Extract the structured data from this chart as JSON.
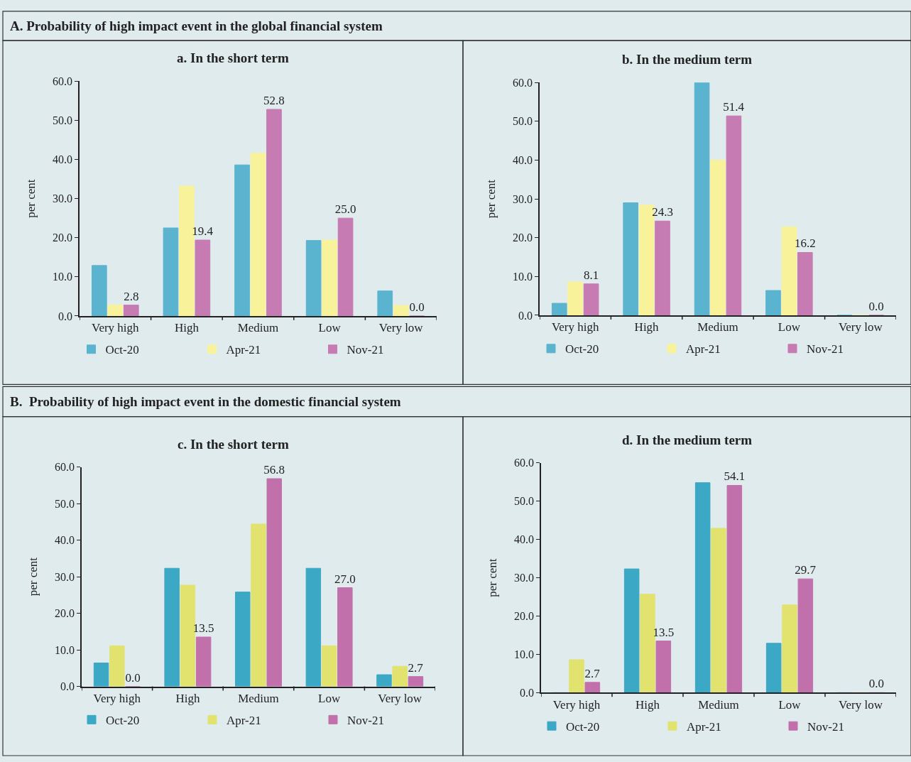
{
  "chart_data": [
    {
      "type": "bar",
      "title": "a. In the short term",
      "ylabel": "per cent",
      "annotations": [
        "A. Probability of high impact event in the global financial system"
      ],
      "categories": [
        "Very high",
        "High",
        "Medium",
        "Low",
        "Very low"
      ],
      "series": [
        {
          "name": "Oct-20",
          "color": "#5bb4cf",
          "values": [
            12.9,
            22.5,
            38.6,
            19.3,
            6.4
          ]
        },
        {
          "name": "Apr-21",
          "color": "#f8f39a",
          "values": [
            2.8,
            33.2,
            41.6,
            19.4,
            2.7
          ]
        },
        {
          "name": "Nov-21",
          "color": "#c67bb3",
          "values": [
            2.8,
            19.4,
            52.8,
            25.0,
            0.0
          ],
          "value_labels": [
            "2.8",
            "19.4",
            "52.8",
            "25.0",
            "0.0"
          ]
        }
      ],
      "ylim": [
        0,
        60
      ],
      "yticks": [
        {
          "value": 0,
          "label": "0.0"
        },
        {
          "value": 10,
          "label": "10.0"
        },
        {
          "value": 20,
          "label": "20.0"
        },
        {
          "value": 30,
          "label": "30.0"
        },
        {
          "value": 40,
          "label": "40.0"
        },
        {
          "value": 50,
          "label": "50.0"
        },
        {
          "value": 60,
          "label": "60.0"
        }
      ],
      "legend": "bottom",
      "grid": false
    },
    {
      "type": "bar",
      "title": "b. In the medium term",
      "ylabel": "per cent",
      "categories": [
        "Very high",
        "High",
        "Medium",
        "Low",
        "Very low"
      ],
      "series": [
        {
          "name": "Oct-20",
          "color": "#5bb4cf",
          "values": [
            3.1,
            29.0,
            60.0,
            6.4,
            0.0
          ]
        },
        {
          "name": "Apr-21",
          "color": "#f8f39a",
          "values": [
            8.6,
            28.4,
            40.0,
            22.8,
            0.0
          ]
        },
        {
          "name": "Nov-21",
          "color": "#c67bb3",
          "values": [
            8.1,
            24.3,
            51.4,
            16.2,
            0.0
          ],
          "value_labels": [
            "8.1",
            "24.3",
            "51.4",
            "16.2",
            "0.0"
          ]
        }
      ],
      "ylim": [
        0,
        60
      ],
      "yticks": [
        {
          "value": 0,
          "label": "0.0"
        },
        {
          "value": 10,
          "label": "10.0"
        },
        {
          "value": 20,
          "label": "20.0"
        },
        {
          "value": 30,
          "label": "30.0"
        },
        {
          "value": 40,
          "label": "40.0"
        },
        {
          "value": 50,
          "label": "50.0"
        },
        {
          "value": 60,
          "label": "60.0"
        }
      ],
      "legend": "bottom",
      "grid": false
    },
    {
      "type": "bar",
      "title": "c. In the short term",
      "ylabel": "per cent",
      "annotations": [
        "B.  Probability of high impact event in the domestic financial system"
      ],
      "categories": [
        "Very high",
        "High",
        "Medium",
        "Low",
        "Very low"
      ],
      "series": [
        {
          "name": "Oct-20",
          "color": "#3ba8c5",
          "values": [
            6.4,
            32.3,
            25.8,
            32.3,
            3.2
          ]
        },
        {
          "name": "Apr-21",
          "color": "#e1e36e",
          "values": [
            11.1,
            27.7,
            44.4,
            11.1,
            5.5
          ]
        },
        {
          "name": "Nov-21",
          "color": "#c270ab",
          "values": [
            0.0,
            13.5,
            56.8,
            27.0,
            2.7
          ],
          "value_labels": [
            "0.0",
            "13.5",
            "56.8",
            "27.0",
            "2.7"
          ]
        }
      ],
      "ylim": [
        0,
        60
      ],
      "yticks": [
        {
          "value": 0,
          "label": "0.0"
        },
        {
          "value": 10,
          "label": "10.0"
        },
        {
          "value": 20,
          "label": "20.0"
        },
        {
          "value": 30,
          "label": "30.0"
        },
        {
          "value": 40,
          "label": "40.0"
        },
        {
          "value": 50,
          "label": "50.0"
        },
        {
          "value": 60,
          "label": "60.0"
        }
      ],
      "legend": "bottom",
      "grid": false
    },
    {
      "type": "bar",
      "title": "d. In the medium term",
      "ylabel": "per cent",
      "categories": [
        "Very high",
        "High",
        "Medium",
        "Low",
        "Very low"
      ],
      "series": [
        {
          "name": "Oct-20",
          "color": "#3ba8c5",
          "values": [
            0.0,
            32.3,
            54.8,
            12.9,
            0.0
          ]
        },
        {
          "name": "Apr-21",
          "color": "#e1e36e",
          "values": [
            8.6,
            25.7,
            42.9,
            22.9,
            0.0
          ]
        },
        {
          "name": "Nov-21",
          "color": "#c270ab",
          "values": [
            2.7,
            13.5,
            54.1,
            29.7,
            0.0
          ],
          "value_labels": [
            "2.7",
            "13.5",
            "54.1",
            "29.7",
            "0.0"
          ]
        }
      ],
      "ylim": [
        0,
        60
      ],
      "yticks": [
        {
          "value": 0,
          "label": "0.0"
        },
        {
          "value": 10,
          "label": "10.0"
        },
        {
          "value": 20,
          "label": "20.0"
        },
        {
          "value": 30,
          "label": "30.0"
        },
        {
          "value": 40,
          "label": "40.0"
        },
        {
          "value": 50,
          "label": "50.0"
        },
        {
          "value": 60,
          "label": "60.0"
        }
      ],
      "legend": "bottom",
      "grid": false
    }
  ]
}
